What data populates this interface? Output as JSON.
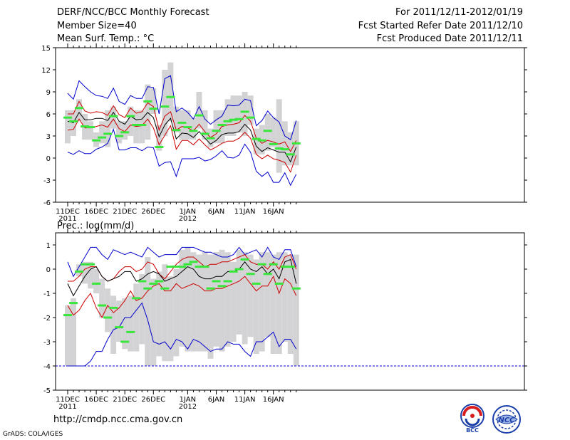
{
  "header": {
    "title": "DERF/NCC/BCC Monthly Forecast",
    "member_size": "Member Size=40",
    "variable": "Mean Surf. Temp.: °C",
    "period": "For 2011/12/11-2012/01/19",
    "started": "Fcst Started Refer Date 2011/12/10",
    "produced": "Fcst Produced Date 2011/12/11"
  },
  "footer": {
    "url": "http://cmdp.ncc.cma.gov.cn",
    "credit": "GrADS: COLA/IGES",
    "logo_bcc": "BCC",
    "logo_ncc": "NCC"
  },
  "colors": {
    "box": "#d3d3d5",
    "median": "#39e63b",
    "mean": "#000000",
    "band": "#cc0000",
    "envelope": "#0000cc",
    "floor": "#0000cc"
  },
  "chart_data": [
    {
      "type": "box",
      "title": "Mean Surf. Temp.: °C",
      "days": 40,
      "ylim": [
        -6,
        15
      ],
      "yticks": [
        -6,
        -3,
        0,
        3,
        6,
        9,
        12,
        15
      ],
      "xticks": [
        {
          "day": 0,
          "label": "11DEC",
          "year": "2011"
        },
        {
          "day": 5,
          "label": "16DEC",
          "year": ""
        },
        {
          "day": 10,
          "label": "21DEC",
          "year": ""
        },
        {
          "day": 15,
          "label": "26DEC",
          "year": ""
        },
        {
          "day": 21,
          "label": "1JAN",
          "year": "2012"
        },
        {
          "day": 26,
          "label": "6JAN",
          "year": ""
        },
        {
          "day": 31,
          "label": "11JAN",
          "year": ""
        },
        {
          "day": 36,
          "label": "16JAN",
          "year": ""
        }
      ],
      "box_low": [
        2.0,
        3.0,
        5.0,
        2.5,
        2.5,
        1.5,
        2.0,
        1.5,
        4.0,
        2.0,
        2.5,
        3.0,
        2.0,
        2.0,
        2.5,
        6.0,
        1.0,
        3.0,
        5.0,
        3.5,
        2.5,
        2.5,
        2.5,
        4.0,
        2.5,
        1.5,
        2.0,
        2.0,
        3.0,
        3.0,
        3.5,
        3.0,
        4.5,
        0.5,
        0.5,
        1.0,
        1.5,
        -2.0,
        -1.0,
        -1.0,
        -1.0
      ],
      "box_high": [
        6.5,
        6.5,
        8.0,
        6.0,
        5.0,
        3.5,
        5.0,
        6.5,
        7.0,
        5.0,
        5.0,
        7.0,
        6.5,
        6.5,
        10.0,
        9.5,
        4.5,
        12.0,
        13.0,
        7.0,
        6.5,
        6.5,
        5.5,
        9.0,
        6.5,
        4.0,
        6.5,
        6.5,
        8.0,
        8.5,
        8.5,
        9.0,
        8.5,
        4.0,
        4.5,
        6.0,
        5.5,
        8.0,
        5.0,
        3.5,
        5.0
      ],
      "median": [
        5.5,
        5.0,
        6.8,
        4.3,
        4.2,
        2.4,
        2.8,
        3.3,
        5.7,
        3.0,
        3.5,
        5.7,
        4.5,
        4.5,
        7.7,
        6.7,
        1.5,
        7.0,
        8.3,
        3.8,
        4.8,
        4.2,
        3.7,
        5.8,
        3.3,
        2.7,
        3.7,
        4.5,
        5.0,
        5.2,
        5.3,
        6.3,
        5.5,
        2.6,
        2.4,
        3.7,
        1.9,
        1.3,
        1.2,
        0.5,
        2.0
      ],
      "mean": [
        5.0,
        4.8,
        6.2,
        5.2,
        5.2,
        5.4,
        5.4,
        5.1,
        6.2,
        5.0,
        4.6,
        5.7,
        5.2,
        5.3,
        6.2,
        5.5,
        2.9,
        4.5,
        5.4,
        2.6,
        3.4,
        3.3,
        2.8,
        3.6,
        2.7,
        1.9,
        2.4,
        3.2,
        3.4,
        3.4,
        3.6,
        4.6,
        3.8,
        1.6,
        0.9,
        1.4,
        1.1,
        0.8,
        0.8,
        -0.5,
        1.5
      ],
      "band_high": [
        6.0,
        6.0,
        7.7,
        6.4,
        6.1,
        6.3,
        6.2,
        5.8,
        7.1,
        5.9,
        5.5,
        6.8,
        6.1,
        6.3,
        7.5,
        7.0,
        3.8,
        5.7,
        6.3,
        3.8,
        4.3,
        4.1,
        3.7,
        4.6,
        3.6,
        2.8,
        3.3,
        4.3,
        4.5,
        4.6,
        4.8,
        5.8,
        5.0,
        2.7,
        2.0,
        2.4,
        2.2,
        1.9,
        2.2,
        0.9,
        2.4
      ],
      "band_low": [
        3.8,
        3.9,
        5.3,
        4.1,
        4.1,
        4.3,
        4.5,
        4.2,
        5.3,
        4.0,
        3.6,
        4.5,
        4.3,
        4.4,
        5.3,
        4.1,
        1.8,
        3.1,
        4.4,
        1.2,
        2.4,
        2.4,
        1.8,
        2.6,
        1.8,
        1.1,
        1.5,
        2.0,
        2.3,
        2.3,
        2.7,
        3.5,
        2.7,
        0.5,
        -0.1,
        0.4,
        -0.1,
        -0.3,
        -0.6,
        -1.9,
        0.4
      ],
      "env_high": [
        8.8,
        8.0,
        10.5,
        9.7,
        9.0,
        8.5,
        8.4,
        8.1,
        9.5,
        7.7,
        7.3,
        8.5,
        8.1,
        8.1,
        9.7,
        9.6,
        6.0,
        10.8,
        11.2,
        6.3,
        6.8,
        6.2,
        5.3,
        7.0,
        5.3,
        4.6,
        5.2,
        5.7,
        7.2,
        7.1,
        7.2,
        8.0,
        7.8,
        4.4,
        5.1,
        6.4,
        5.5,
        4.9,
        3.0,
        2.5,
        5.1
      ],
      "env_low": [
        0.8,
        0.5,
        1.0,
        0.6,
        0.6,
        1.2,
        1.5,
        2.0,
        3.9,
        1.1,
        1.1,
        1.4,
        1.4,
        1.0,
        1.5,
        1.4,
        -1.1,
        -0.6,
        -0.5,
        -2.5,
        -0.1,
        -0.1,
        -0.1,
        0.1,
        -0.4,
        -0.2,
        0.3,
        1.0,
        0.1,
        0.0,
        0.4,
        1.9,
        0.8,
        -1.8,
        -2.5,
        -1.9,
        -3.3,
        -3.3,
        -2.0,
        -3.7,
        -2.2
      ]
    },
    {
      "type": "box",
      "title": "Prec.: log(mm/d)",
      "days": 40,
      "ylim": [
        -5,
        1.5
      ],
      "yticks": [
        -5,
        -4,
        -3,
        -2,
        -1,
        0,
        1
      ],
      "xticks": [
        {
          "day": 0,
          "label": "11DEC",
          "year": "2011"
        },
        {
          "day": 5,
          "label": "16DEC",
          "year": ""
        },
        {
          "day": 10,
          "label": "21DEC",
          "year": ""
        },
        {
          "day": 15,
          "label": "26DEC",
          "year": ""
        },
        {
          "day": 21,
          "label": "1JAN",
          "year": "2012"
        },
        {
          "day": 26,
          "label": "6JAN",
          "year": ""
        },
        {
          "day": 31,
          "label": "11JAN",
          "year": ""
        },
        {
          "day": 36,
          "label": "16JAN",
          "year": ""
        }
      ],
      "box_low": [
        -4.0,
        -4.0,
        -0.3,
        -0.6,
        -0.8,
        -1.0,
        -2.0,
        -2.6,
        -3.5,
        -3.0,
        -3.3,
        -3.4,
        -3.4,
        -3.1,
        -4.0,
        -4.0,
        -3.6,
        -3.8,
        -3.8,
        -3.6,
        -3.2,
        -3.4,
        -3.4,
        -3.4,
        -3.4,
        -3.7,
        -3.2,
        -3.4,
        -3.2,
        -3.0,
        -2.7,
        -3.1,
        -2.8,
        -3.5,
        -3.4,
        -2.8,
        -3.5,
        -3.5,
        -3.0,
        -3.5,
        -4.0
      ],
      "box_high": [
        -1.5,
        -1.2,
        0.2,
        0.3,
        0.3,
        0.0,
        -0.4,
        -0.8,
        -1.1,
        -1.3,
        -1.2,
        -1.1,
        -0.6,
        -0.2,
        0.5,
        -0.4,
        -0.1,
        0.2,
        -0.3,
        0.0,
        0.8,
        0.9,
        0.7,
        0.6,
        0.7,
        0.6,
        0.7,
        0.8,
        0.7,
        0.3,
        0.8,
        0.7,
        0.6,
        0.4,
        0.7,
        0.7,
        0.6,
        0.7,
        0.7,
        0.6,
        0.6
      ],
      "median": [
        -1.9,
        -1.4,
        -0.1,
        0.2,
        0.2,
        -0.6,
        -1.5,
        -2.0,
        -1.6,
        -2.4,
        -3.0,
        -2.6,
        -1.2,
        -0.5,
        -0.8,
        -0.6,
        -0.5,
        -0.8,
        0.1,
        0.1,
        0.1,
        0.2,
        0.3,
        0.1,
        0.1,
        -0.8,
        -0.5,
        -0.7,
        -0.5,
        -0.1,
        0.0,
        0.4,
        -0.2,
        -0.6,
        0.2,
        -0.2,
        0.2,
        -0.6,
        0.1,
        0.1,
        -0.8
      ],
      "mean": [
        -0.6,
        -1.1,
        -0.7,
        -0.3,
        0.0,
        0.1,
        -0.3,
        -0.5,
        -0.4,
        -0.3,
        -0.1,
        -0.1,
        -0.5,
        -0.4,
        -0.2,
        -0.1,
        -0.2,
        -0.5,
        -0.4,
        -0.3,
        -0.1,
        0.1,
        0.0,
        -0.3,
        -0.4,
        -0.4,
        -0.3,
        -0.3,
        -0.1,
        -0.1,
        0.0,
        0.3,
        0.0,
        -0.1,
        0.1,
        -0.2,
        0.0,
        -0.4,
        0.3,
        0.4,
        -0.6
      ],
      "band_high": [
        -0.5,
        -0.5,
        -0.3,
        0.0,
        0.1,
        0.1,
        -0.3,
        -0.5,
        -0.4,
        -0.1,
        0.1,
        0.1,
        -0.1,
        0.0,
        0.3,
        0.2,
        -0.2,
        -0.4,
        -0.1,
        0.2,
        0.4,
        0.5,
        0.5,
        0.3,
        0.1,
        0.2,
        0.2,
        0.3,
        0.3,
        0.4,
        0.5,
        0.6,
        0.3,
        0.2,
        0.2,
        0.0,
        0.3,
        0.0,
        0.5,
        0.6,
        0.0
      ],
      "band_low": [
        -1.5,
        -1.9,
        -1.7,
        -1.3,
        -1.0,
        -1.6,
        -2.0,
        -1.5,
        -1.8,
        -1.6,
        -1.3,
        -0.9,
        -1.3,
        -1.2,
        -0.9,
        -0.7,
        -0.6,
        -0.9,
        -0.9,
        -0.6,
        -0.8,
        -0.7,
        -0.6,
        -0.7,
        -0.9,
        -0.9,
        -0.8,
        -0.8,
        -0.7,
        -0.6,
        -0.5,
        -0.3,
        -0.6,
        -0.9,
        -0.7,
        -0.7,
        -0.3,
        -1.0,
        -0.4,
        -0.6,
        -1.1
      ],
      "env_high": [
        0.3,
        -0.3,
        0.1,
        0.5,
        0.9,
        0.9,
        0.6,
        0.4,
        0.8,
        0.7,
        0.6,
        0.7,
        0.6,
        0.5,
        0.9,
        0.7,
        0.5,
        0.6,
        0.6,
        0.6,
        0.9,
        0.9,
        0.9,
        0.8,
        0.7,
        0.7,
        0.6,
        0.5,
        0.5,
        0.6,
        0.9,
        0.6,
        0.7,
        0.8,
        0.5,
        0.9,
        0.5,
        0.4,
        0.8,
        0.8,
        0.1
      ],
      "env_low": [
        -4.0,
        -4.0,
        -4.0,
        -4.0,
        -3.8,
        -3.4,
        -3.4,
        -2.9,
        -2.5,
        -2.4,
        -2.0,
        -2.0,
        -1.7,
        -1.4,
        -2.1,
        -3.0,
        -3.1,
        -3.0,
        -3.3,
        -2.9,
        -3.0,
        -3.3,
        -2.9,
        -3.0,
        -3.2,
        -3.4,
        -3.3,
        -3.3,
        -3.0,
        -3.1,
        -3.1,
        -3.4,
        -3.6,
        -3.0,
        -3.0,
        -2.8,
        -2.6,
        -3.2,
        -2.9,
        -2.9,
        -3.3
      ],
      "floor_value": -4
    }
  ]
}
